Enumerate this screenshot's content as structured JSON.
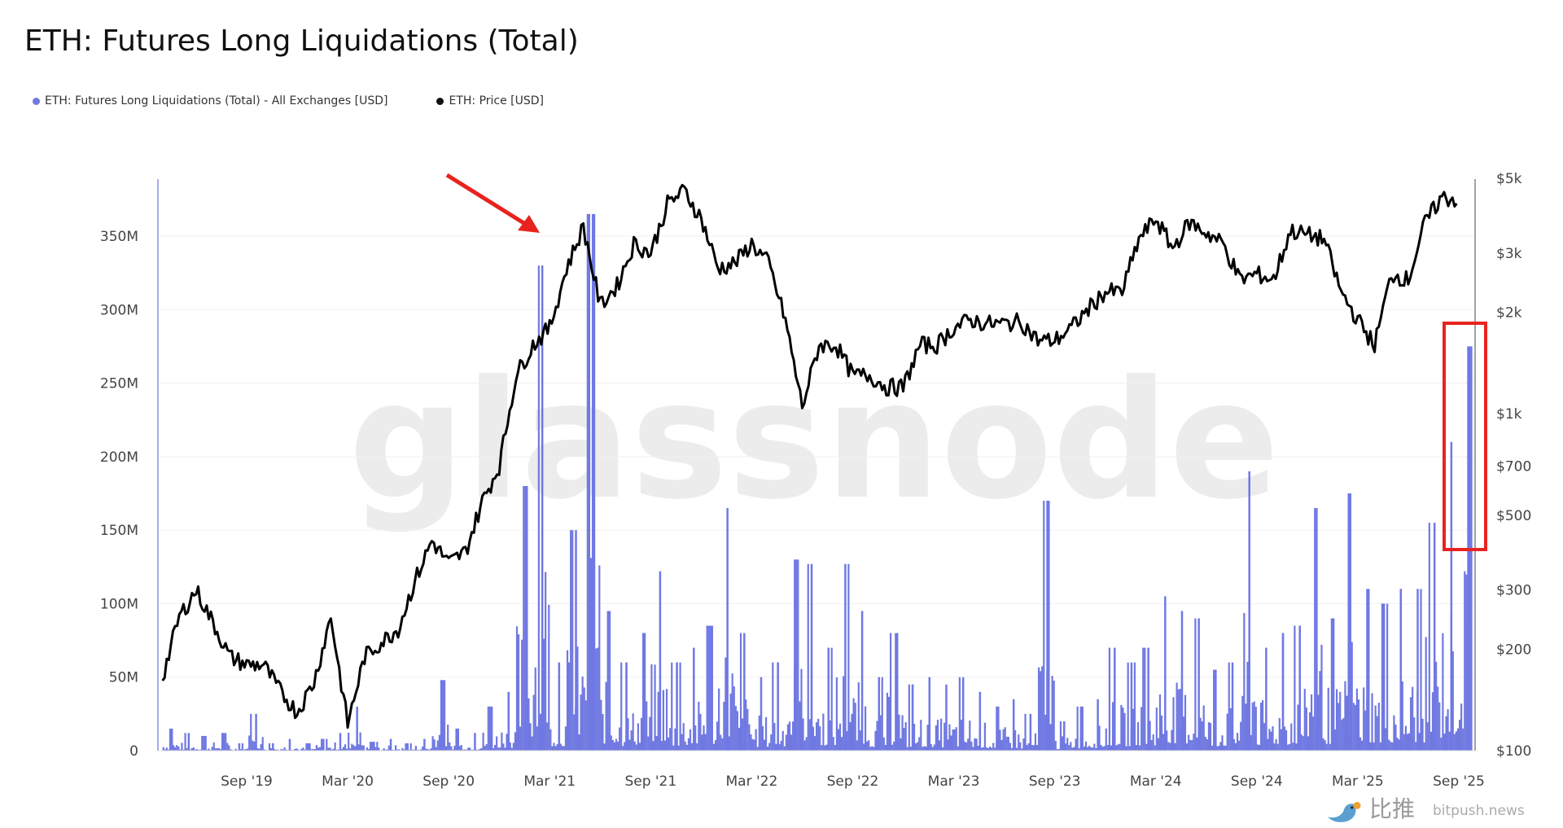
{
  "title": "ETH: Futures Long Liquidations (Total)",
  "legend": [
    {
      "label": "ETH: Futures Long Liquidations (Total) - All Exchanges [USD]",
      "color": "#7079e0"
    },
    {
      "label": "ETH: Price [USD]",
      "color": "#111111"
    }
  ],
  "watermark": "glassnode",
  "bitpush": {
    "cn": "比推",
    "en": "bitpush.news"
  },
  "chart_data": {
    "type": "bar+line",
    "title": "ETH: Futures Long Liquidations (Total)",
    "x_start": "Apr 2019",
    "x_resolution": "monthly (peak values)",
    "x_tick_labels": [
      "Sep '19",
      "Mar '20",
      "Sep '20",
      "Mar '21",
      "Sep '21",
      "Mar '22",
      "Sep '22",
      "Mar '23",
      "Sep '23",
      "Mar '24",
      "Sep '24",
      "Mar '25",
      "Sep '25"
    ],
    "y_left": {
      "ticks": [
        "0",
        "50M",
        "100M",
        "150M",
        "200M",
        "250M",
        "300M",
        "350M"
      ],
      "range_millions": [
        0,
        350
      ],
      "scale": "linear"
    },
    "y_right": {
      "ticks": [
        "$100",
        "$200",
        "$300",
        "$500",
        "$700",
        "$1k",
        "$2k",
        "$3k",
        "$5k"
      ],
      "range": [
        100,
        5000
      ],
      "scale": "log"
    },
    "grid": true,
    "legend_placement": "top-left",
    "series": [
      {
        "name": "ETH: Futures Long Liquidations (Total) - All Exchanges [USD]",
        "type": "bar",
        "unit": "millions USD",
        "values": [
          15,
          12,
          10,
          12,
          5,
          25,
          5,
          8,
          5,
          8,
          12,
          30,
          6,
          8,
          5,
          8,
          48,
          15,
          12,
          30,
          40,
          180,
          330,
          60,
          150,
          365,
          95,
          60,
          80,
          122,
          60,
          70,
          85,
          165,
          80,
          50,
          60,
          130,
          127,
          70,
          127,
          95,
          50,
          80,
          45,
          50,
          45,
          50,
          40,
          30,
          35,
          25,
          170,
          20,
          30,
          35,
          70,
          60,
          70,
          105,
          95,
          90,
          55,
          60,
          190,
          70,
          80,
          85,
          165,
          90,
          175,
          110,
          100,
          110,
          110,
          155,
          210,
          275
        ]
      },
      {
        "name": "ETH: Price [USD]",
        "type": "line",
        "unit": "USD",
        "values": [
          165,
          250,
          300,
          240,
          190,
          180,
          180,
          150,
          130,
          160,
          250,
          120,
          190,
          210,
          230,
          320,
          420,
          360,
          390,
          550,
          700,
          1300,
          1600,
          1800,
          2700,
          3600,
          2100,
          2400,
          3200,
          3000,
          4200,
          4600,
          3800,
          2700,
          2800,
          3200,
          2800,
          1900,
          1050,
          1600,
          1600,
          1300,
          1300,
          1200,
          1200,
          1600,
          1600,
          1800,
          1900,
          1850,
          1850,
          1880,
          1650,
          1650,
          1800,
          2050,
          2300,
          2300,
          3300,
          3800,
          3100,
          3700,
          3450,
          3200,
          2500,
          2600,
          2500,
          3500,
          3400,
          3300,
          2300,
          1900,
          1600,
          2600,
          2500,
          3700,
          4400,
          4300
        ]
      }
    ],
    "annotations": [
      "red arrow pointing at early-2021 liquidation spikes",
      "red box highlighting Aug-Sep 2025 spikes"
    ]
  }
}
